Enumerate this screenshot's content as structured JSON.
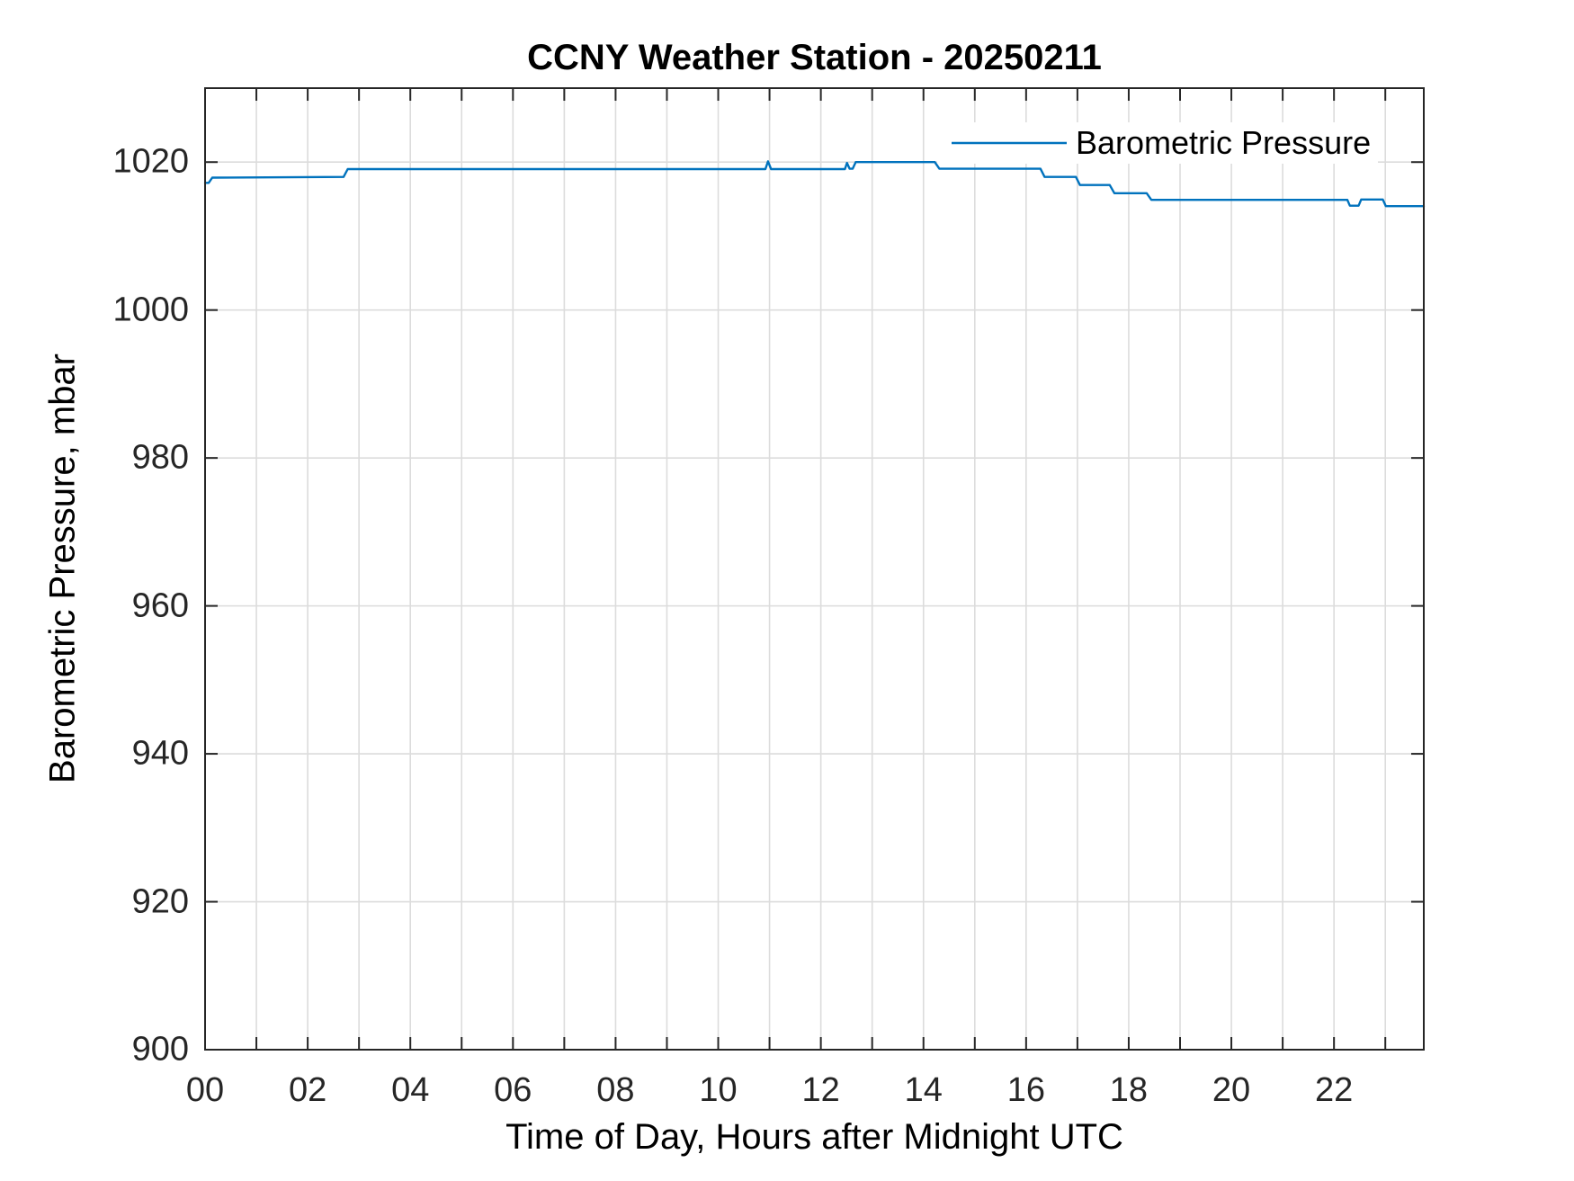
{
  "chart_data": {
    "type": "line",
    "title": "CCNY Weather Station - 20250211",
    "xlabel": "Time of Day, Hours after Midnight UTC",
    "ylabel": "Barometric Pressure, mbar",
    "xlim": [
      0,
      23.75
    ],
    "ylim": [
      900,
      1030
    ],
    "grid": true,
    "xticks": [
      0,
      1,
      2,
      3,
      4,
      5,
      6,
      7,
      8,
      9,
      10,
      11,
      12,
      13,
      14,
      15,
      16,
      17,
      18,
      19,
      20,
      21,
      22,
      23
    ],
    "xtick_labels": [
      "00",
      "",
      "02",
      "",
      "04",
      "",
      "06",
      "",
      "08",
      "",
      "10",
      "",
      "12",
      "",
      "14",
      "",
      "16",
      "",
      "18",
      "",
      "20",
      "",
      "22",
      ""
    ],
    "yticks": [
      900,
      920,
      940,
      960,
      980,
      1000,
      1020
    ],
    "ytick_labels": [
      "900",
      "920",
      "940",
      "960",
      "980",
      "1000",
      "1020"
    ],
    "legend": {
      "position": "top-right-inside",
      "entries": [
        "Barometric Pressure"
      ]
    },
    "series": [
      {
        "name": "Barometric Pressure",
        "color": "#0072BD",
        "points": [
          [
            0.0,
            1017.2
          ],
          [
            0.07,
            1017.2
          ],
          [
            0.14,
            1017.9
          ],
          [
            2.7,
            1018.0
          ],
          [
            2.78,
            1019.05
          ],
          [
            10.92,
            1019.05
          ],
          [
            10.97,
            1020.1
          ],
          [
            11.03,
            1019.05
          ],
          [
            12.47,
            1019.05
          ],
          [
            12.51,
            1019.9
          ],
          [
            12.56,
            1019.1
          ],
          [
            12.62,
            1019.1
          ],
          [
            12.68,
            1020.0
          ],
          [
            14.22,
            1020.0
          ],
          [
            14.31,
            1019.1
          ],
          [
            16.28,
            1019.1
          ],
          [
            16.36,
            1018.0
          ],
          [
            16.97,
            1018.0
          ],
          [
            17.05,
            1016.9
          ],
          [
            17.63,
            1016.9
          ],
          [
            17.72,
            1015.8
          ],
          [
            18.35,
            1015.8
          ],
          [
            18.44,
            1014.9
          ],
          [
            22.26,
            1014.9
          ],
          [
            22.31,
            1014.1
          ],
          [
            22.48,
            1014.1
          ],
          [
            22.53,
            1014.95
          ],
          [
            22.95,
            1014.95
          ],
          [
            23.01,
            1014.05
          ],
          [
            23.75,
            1014.05
          ]
        ]
      }
    ]
  },
  "colors": {
    "line": "#0072BD",
    "axis": "#262626",
    "grid": "#dcdcdc",
    "background": "#ffffff"
  }
}
